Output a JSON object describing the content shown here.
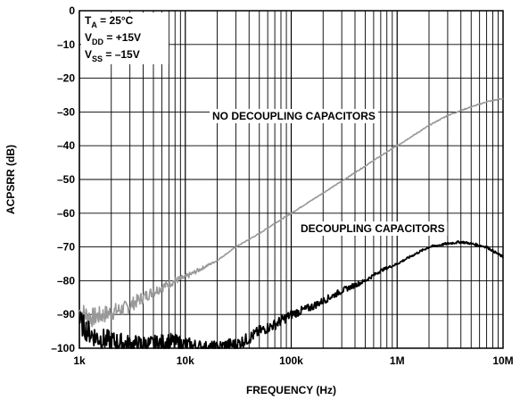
{
  "chart_data": {
    "type": "line",
    "xlabel": "FREQUENCY (Hz)",
    "ylabel": "ACPSRR (dB)",
    "x_scale": "log",
    "xlim": [
      1000,
      10000000
    ],
    "ylim": [
      -100,
      0
    ],
    "x_ticks": [
      {
        "value": 1000,
        "label": "1k"
      },
      {
        "value": 10000,
        "label": "10k"
      },
      {
        "value": 100000,
        "label": "100k"
      },
      {
        "value": 1000000,
        "label": "1M"
      },
      {
        "value": 10000000,
        "label": "10M"
      }
    ],
    "y_ticks": [
      {
        "value": 0,
        "label": "0"
      },
      {
        "value": -10,
        "label": "–10"
      },
      {
        "value": -20,
        "label": "–20"
      },
      {
        "value": -30,
        "label": "–30"
      },
      {
        "value": -40,
        "label": "–40"
      },
      {
        "value": -50,
        "label": "–50"
      },
      {
        "value": -60,
        "label": "–60"
      },
      {
        "value": -70,
        "label": "–70"
      },
      {
        "value": -80,
        "label": "–80"
      },
      {
        "value": -90,
        "label": "–90"
      },
      {
        "value": -100,
        "label": "–100"
      }
    ],
    "grid": true,
    "conditions": {
      "ta": {
        "main": "T",
        "sub": "A",
        "rest": " = 25°C"
      },
      "vdd": {
        "main": "V",
        "sub": "DD",
        "rest": " = +15V"
      },
      "vss": {
        "main": "V",
        "sub": "SS",
        "rest": " = –15V"
      }
    },
    "series": [
      {
        "name": "NO DECOUPLING CAPACITORS",
        "color": "#999999",
        "x": [
          1000,
          1300,
          1700,
          2200,
          2800,
          3500,
          4500,
          6000,
          8000,
          10000,
          15000,
          20000,
          30000,
          50000,
          70000,
          100000,
          150000,
          200000,
          300000,
          500000,
          700000,
          1000000,
          1500000,
          2000000,
          3000000,
          5000000,
          7000000,
          10000000
        ],
        "y": [
          -89,
          -91,
          -90,
          -89,
          -88,
          -86,
          -84,
          -82,
          -80,
          -79,
          -76,
          -74,
          -70,
          -66,
          -63,
          -60,
          -56.5,
          -54,
          -50.5,
          -46,
          -43,
          -40,
          -36.5,
          -34,
          -31,
          -28.5,
          -27,
          -26
        ]
      },
      {
        "name": "DECOUPLING CAPACITORS",
        "color": "#000000",
        "x": [
          1000,
          1200,
          1500,
          2000,
          3000,
          5000,
          7000,
          10000,
          15000,
          20000,
          25000,
          30000,
          40000,
          50000,
          70000,
          100000,
          150000,
          200000,
          300000,
          500000,
          700000,
          1000000,
          1500000,
          2000000,
          3000000,
          4000000,
          5000000,
          7000000,
          10000000
        ],
        "y": [
          -92,
          -95,
          -97,
          -98,
          -99,
          -99,
          -98,
          -99,
          -100,
          -100,
          -99,
          -99,
          -97,
          -95,
          -93,
          -90,
          -88,
          -86,
          -83,
          -80,
          -77,
          -75,
          -72,
          -70,
          -69,
          -68.5,
          -69,
          -70,
          -73
        ]
      }
    ],
    "annotations": [
      {
        "text": "NO DECOUPLING CAPACITORS",
        "series": 0
      },
      {
        "text": "DECOUPLING CAPACITORS",
        "series": 1
      }
    ]
  }
}
